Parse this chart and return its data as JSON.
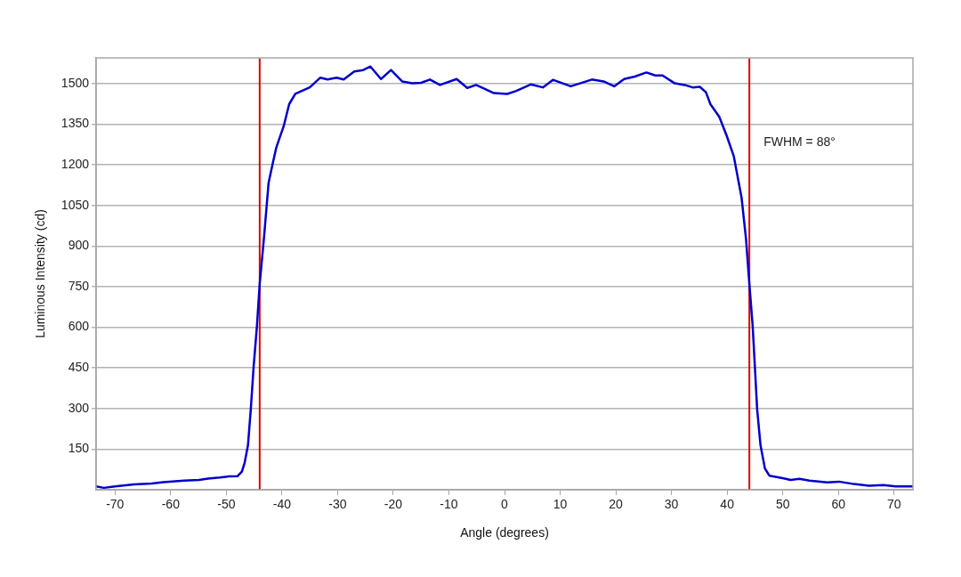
{
  "chart_data": {
    "type": "line",
    "xlabel": "Angle (degrees)",
    "ylabel": "Luminous Intensity (cd)",
    "xlim": [
      -73.4,
      73.4
    ],
    "xticks": [
      -70,
      -60,
      -50,
      -40,
      -30,
      -20,
      -10,
      0,
      10,
      20,
      30,
      40,
      50,
      60,
      70
    ],
    "ylim": [
      0,
      1595
    ],
    "yticks": [
      150,
      300,
      450,
      600,
      750,
      900,
      1050,
      1200,
      1350,
      1500
    ],
    "grid": "y",
    "legend": false,
    "marker": "none",
    "line_style": "solid",
    "ref_lines": [
      {
        "axis": "x",
        "value": -44,
        "color": "#e00000"
      },
      {
        "axis": "x",
        "value": 44,
        "color": "#e00000"
      }
    ],
    "annotations": [
      "FWHM = 88°"
    ],
    "series": [
      {
        "color": "#0000cc",
        "x": [
          -73.4,
          -72,
          -70,
          -66.6,
          -63.4,
          -61.3,
          -57.6,
          -54.9,
          -53.3,
          -51.2,
          -49.6,
          -48,
          -47.2,
          -46.7,
          -46.1,
          -45.6,
          -45.1,
          -44.5,
          -44,
          -43.2,
          -42.4,
          -41.6,
          -41,
          -39.7,
          -38.7,
          -37.6,
          -35,
          -33.1,
          -31.8,
          -30.2,
          -28.9,
          -27,
          -25.4,
          -24.1,
          -22.2,
          -20.4,
          -18.4,
          -16.6,
          -15,
          -13.4,
          -11.6,
          -8.6,
          -6.7,
          -5.1,
          -1.9,
          0.5,
          2.1,
          4.7,
          6.9,
          8.7,
          11.9,
          15.7,
          17.8,
          19.7,
          21.5,
          23.4,
          25.5,
          27.1,
          28.4,
          30.6,
          32.4,
          33.8,
          35.1,
          36.2,
          37,
          38.6,
          39.9,
          41.2,
          42.6,
          43.4,
          44,
          44.6,
          45,
          45.4,
          46,
          46.8,
          47.6,
          50,
          51.4,
          53,
          54.8,
          58,
          60.1,
          62.8,
          65.5,
          68.1,
          70.3,
          73.4
        ],
        "values": [
          12,
          7,
          12,
          20,
          23,
          28,
          34,
          36,
          41,
          45,
          49,
          50,
          67,
          100,
          165,
          297,
          451,
          603,
          760,
          937,
          1134,
          1210,
          1265,
          1342,
          1424,
          1462,
          1486,
          1522,
          1515,
          1522,
          1515,
          1545,
          1550,
          1563,
          1517,
          1550,
          1508,
          1501,
          1503,
          1515,
          1495,
          1517,
          1484,
          1495,
          1465,
          1462,
          1473,
          1497,
          1486,
          1514,
          1490,
          1515,
          1508,
          1490,
          1517,
          1526,
          1541,
          1530,
          1530,
          1501,
          1495,
          1486,
          1488,
          1468,
          1424,
          1377,
          1309,
          1232,
          1079,
          926,
          760,
          603,
          451,
          297,
          165,
          78,
          52,
          43,
          36,
          40,
          34,
          27,
          30,
          21,
          15,
          17,
          12,
          12
        ]
      }
    ]
  }
}
